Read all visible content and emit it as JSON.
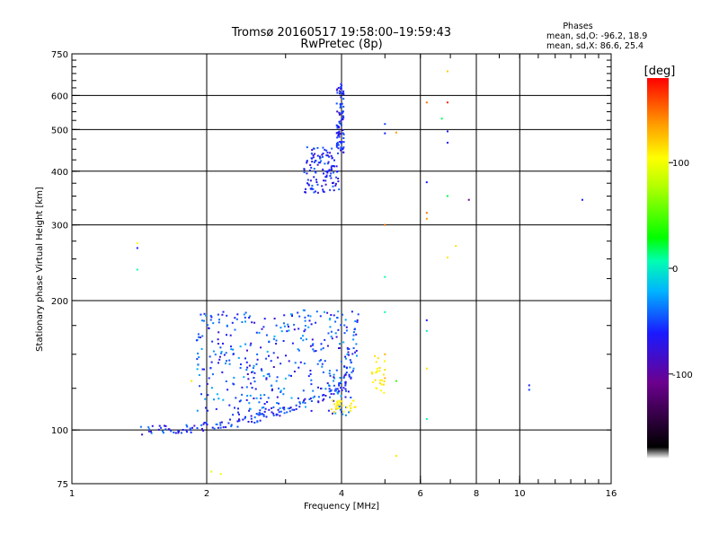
{
  "chart_data": {
    "type": "scatter",
    "title": "Tromsø 20160517 19:58:00–19:59:43",
    "subtitle": "RwPretec (8p)",
    "stats": {
      "heading": "Phases",
      "line_o": "mean, sd,O: -96.2, 18.9",
      "line_x": "mean, sd,X:  86.6, 25.4"
    },
    "xlabel": "Frequency [MHz]",
    "ylabel": "Stationary phase Virtual Height [km]",
    "x_scale": "log",
    "y_scale": "log",
    "xlim": [
      1,
      16
    ],
    "ylim": [
      75,
      750
    ],
    "x_ticks": [
      {
        "v": 1,
        "label": "1"
      },
      {
        "v": 2,
        "label": "2"
      },
      {
        "v": 4,
        "label": "4"
      },
      {
        "v": 6,
        "label": "6"
      },
      {
        "v": 8,
        "label": "8"
      },
      {
        "v": 10,
        "label": "10"
      },
      {
        "v": 16,
        "label": "16"
      }
    ],
    "x_grid": [
      2,
      4,
      6,
      8,
      10
    ],
    "y_ticks": [
      {
        "v": 75,
        "label": "75"
      },
      {
        "v": 100,
        "label": "100"
      },
      {
        "v": 200,
        "label": "200"
      },
      {
        "v": 300,
        "label": "300"
      },
      {
        "v": 400,
        "label": "400"
      },
      {
        "v": 500,
        "label": "500"
      },
      {
        "v": 600,
        "label": "600"
      },
      {
        "v": 750,
        "label": "750"
      }
    ],
    "y_grid": [
      100,
      200,
      300,
      400,
      500,
      600
    ],
    "grid": true,
    "colorbar": {
      "label": "[deg]",
      "range": [
        -180,
        180
      ],
      "ticks": [
        {
          "v": 100,
          "label": "100"
        },
        {
          "v": 0,
          "label": "0"
        },
        {
          "v": -100,
          "label": "-100"
        }
      ]
    },
    "point_groups": [
      {
        "kind": "trace",
        "f": [
          1.45,
          4.0
        ],
        "h": [
          100,
          125
        ],
        "n": 130,
        "df": 0.02,
        "dh": 2.5,
        "ph": [
          -125,
          -85
        ]
      },
      {
        "kind": "band",
        "f": [
          1.9,
          4.25
        ],
        "h": [
          108,
          190
        ],
        "n": 380,
        "ph": [
          -125,
          -70
        ]
      },
      {
        "kind": "trace",
        "f": [
          3.9,
          4.35
        ],
        "h": [
          125,
          185
        ],
        "n": 55,
        "df": 0.03,
        "dh": 4,
        "ph": [
          -120,
          -75
        ]
      },
      {
        "kind": "band",
        "f": [
          3.3,
          3.95
        ],
        "h": [
          355,
          455
        ],
        "n": 120,
        "ph": [
          -125,
          -90
        ]
      },
      {
        "kind": "band",
        "f": [
          3.9,
          4.05
        ],
        "h": [
          440,
          640
        ],
        "n": 85,
        "ph": [
          -125,
          -90
        ]
      },
      {
        "kind": "band",
        "f": [
          3.8,
          4.3
        ],
        "h": [
          110,
          118
        ],
        "n": 28,
        "ph": [
          100,
          115
        ]
      },
      {
        "kind": "band",
        "f": [
          4.65,
          5.0
        ],
        "h": [
          122,
          150
        ],
        "n": 26,
        "ph": [
          100,
          115
        ]
      }
    ],
    "points": [
      [
        1.4,
        272,
        100
      ],
      [
        1.4,
        265,
        -110
      ],
      [
        1.4,
        236,
        -20
      ],
      [
        1.5,
        75,
        80
      ],
      [
        1.85,
        130,
        110
      ],
      [
        2.05,
        80,
        90
      ],
      [
        2.15,
        79,
        95
      ],
      [
        5.0,
        515,
        -100
      ],
      [
        5.0,
        490,
        -110
      ],
      [
        5.0,
        300,
        150
      ],
      [
        5.0,
        227,
        -20
      ],
      [
        5.0,
        188,
        -20
      ],
      [
        5.0,
        150,
        130
      ],
      [
        5.0,
        132,
        130
      ],
      [
        5.3,
        492,
        140
      ],
      [
        5.3,
        130,
        20
      ],
      [
        5.3,
        87,
        110
      ],
      [
        6.2,
        578,
        150
      ],
      [
        6.2,
        377,
        -110
      ],
      [
        6.2,
        320,
        150
      ],
      [
        6.2,
        310,
        140
      ],
      [
        6.2,
        180,
        -110
      ],
      [
        6.2,
        170,
        -30
      ],
      [
        6.2,
        139,
        110
      ],
      [
        6.2,
        106,
        -20
      ],
      [
        6.7,
        530,
        -10
      ],
      [
        6.9,
        683,
        120
      ],
      [
        6.9,
        578,
        170
      ],
      [
        6.9,
        495,
        -110
      ],
      [
        6.9,
        466,
        -110
      ],
      [
        6.9,
        350,
        -10
      ],
      [
        6.9,
        252,
        110
      ],
      [
        7.2,
        268,
        110
      ],
      [
        7.7,
        343,
        -140
      ],
      [
        10.5,
        127,
        -110
      ],
      [
        10.5,
        124,
        -100
      ],
      [
        13.8,
        343,
        -110
      ]
    ]
  }
}
